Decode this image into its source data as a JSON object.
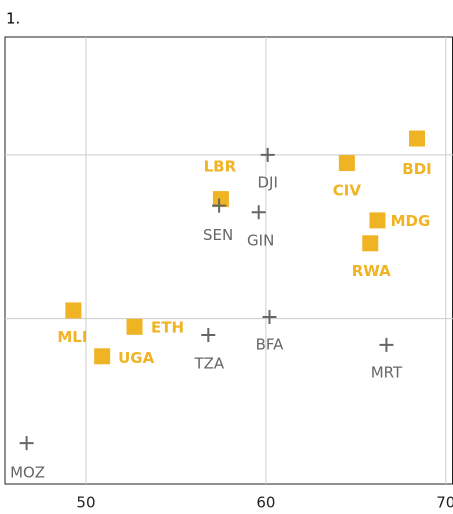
{
  "chart_data": {
    "type": "scatter",
    "title": "1.",
    "xlim": [
      45.5,
      70.4
    ],
    "xticks": [
      50,
      60,
      70
    ],
    "ylim": [
      -1.01,
      1.72
    ],
    "yticks": [
      0,
      1
    ],
    "grid": true,
    "series": [
      {
        "name": null,
        "marker": "square",
        "color": "#f0b323",
        "labels": [
          "LBR",
          "CIV",
          "BDI",
          "MDG",
          "RWA",
          "MLI",
          "ETH",
          "UGA"
        ],
        "x": [
          57.5,
          64.5,
          68.4,
          66.2,
          65.8,
          49.3,
          52.7,
          50.9
        ],
        "values": [
          0.73,
          0.95,
          1.1,
          0.6,
          0.46,
          0.05,
          -0.05,
          -0.23
        ]
      },
      {
        "name": null,
        "marker": "cross",
        "color": "#666666",
        "labels": [
          "DJI",
          "SEN",
          "GIN",
          "BFA",
          "TZA",
          "MRT",
          "MOZ"
        ],
        "x": [
          60.1,
          57.4,
          59.6,
          60.2,
          56.8,
          66.7,
          46.7
        ],
        "values": [
          1.0,
          0.69,
          0.65,
          0.01,
          -0.1,
          -0.16,
          -0.76
        ]
      }
    ]
  }
}
